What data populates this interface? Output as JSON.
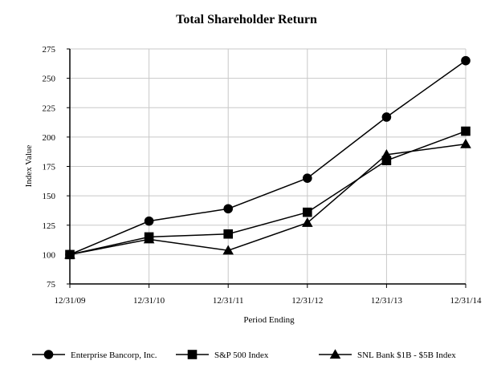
{
  "chart_data": {
    "type": "line",
    "title": "Total Shareholder Return",
    "xlabel": "Period Ending",
    "ylabel": "Index Value",
    "categories": [
      "12/31/09",
      "12/31/10",
      "12/31/11",
      "12/31/12",
      "12/31/13",
      "12/31/14"
    ],
    "ylim": [
      75,
      275
    ],
    "yticks": [
      75,
      100,
      125,
      150,
      175,
      200,
      225,
      250,
      275
    ],
    "grid": true,
    "legend_position": "bottom",
    "series": [
      {
        "name": "Enterprise Bancorp, Inc.",
        "marker": "circle",
        "values": [
          100,
          128.5,
          139,
          165,
          217,
          265
        ]
      },
      {
        "name": "S&P 500 Index",
        "marker": "square",
        "values": [
          100,
          115,
          117.5,
          136,
          180,
          205
        ]
      },
      {
        "name": "SNL Bank $1B - $5B Index",
        "marker": "triangle",
        "values": [
          100,
          113,
          103.5,
          127,
          185,
          194
        ]
      }
    ],
    "colors": {
      "line": "#000000",
      "grid": "#c8c8c8",
      "axis": "#000000"
    }
  }
}
